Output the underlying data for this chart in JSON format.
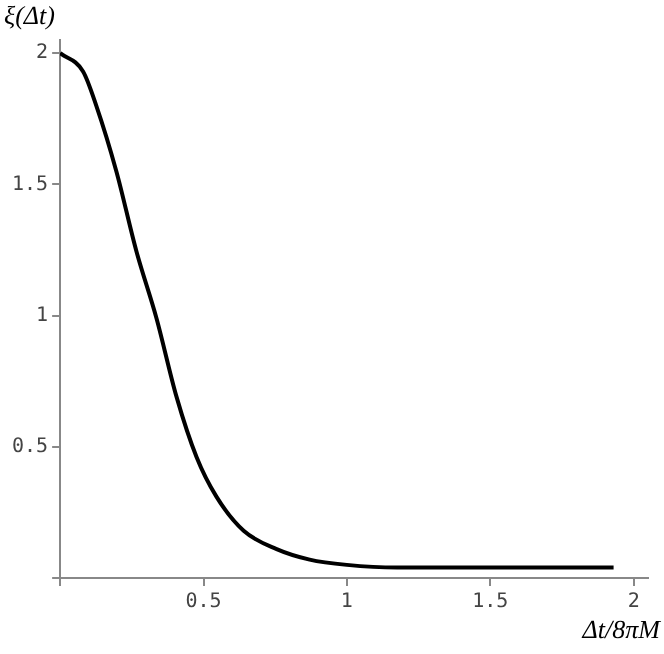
{
  "chart_data": {
    "type": "line",
    "xlabel": "Δt/8πM",
    "ylabel": "ξ(Δt)",
    "series": [
      {
        "color": "#000000",
        "x": [
          0,
          0.08,
          0.126,
          0.196,
          0.266,
          0.336,
          0.406,
          0.476,
          0.545,
          0.64,
          0.755,
          0.87,
          1.0,
          1.175,
          1.5,
          1.93
        ],
        "values": [
          2,
          1.93,
          1.8,
          1.55,
          1.245,
          0.99,
          0.69,
          0.46,
          0.31,
          0.18,
          0.11,
          0.07,
          0.05,
          0.04,
          0.04,
          0.04
        ]
      }
    ],
    "xlim": [
      0,
      2.05
    ],
    "ylim": [
      0,
      2.05
    ],
    "xticks": [
      {
        "value": 0,
        "label": null
      },
      0.5,
      1,
      1.5,
      2
    ],
    "yticks": [
      {
        "value": 0,
        "label": null
      },
      0.5,
      1,
      1.5,
      2
    ],
    "grid": false,
    "legend": false,
    "marker": "none",
    "line_style": "solid"
  }
}
